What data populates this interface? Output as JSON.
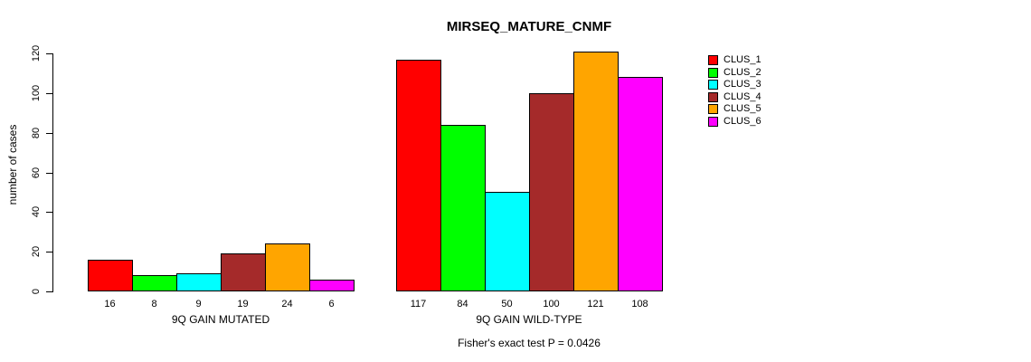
{
  "chart_data": {
    "type": "bar",
    "title": "MIRSEQ_MATURE_CNMF",
    "ylabel": "number of cases",
    "xlabel": "",
    "ylim": [
      0,
      120
    ],
    "yticks": [
      0,
      20,
      40,
      60,
      80,
      100,
      120
    ],
    "grid": false,
    "legend_position": "right",
    "categories": [
      "9Q GAIN MUTATED",
      "9Q GAIN WILD-TYPE"
    ],
    "series": [
      {
        "name": "CLUS_1",
        "color": "#FF0000",
        "values": [
          16,
          117
        ]
      },
      {
        "name": "CLUS_2",
        "color": "#00FF00",
        "values": [
          8,
          84
        ]
      },
      {
        "name": "CLUS_3",
        "color": "#00FFFF",
        "values": [
          9,
          50
        ]
      },
      {
        "name": "CLUS_4",
        "color": "#A52A2A",
        "values": [
          19,
          100
        ]
      },
      {
        "name": "CLUS_5",
        "color": "#FFA500",
        "values": [
          24,
          121
        ]
      },
      {
        "name": "CLUS_6",
        "color": "#FF00FF",
        "values": [
          6,
          108
        ]
      }
    ],
    "bar_value_labels_shown": true,
    "annotation": "Fisher's exact test P = 0.0426",
    "axis_color": "#000000",
    "bar_border_color": "#000000"
  }
}
